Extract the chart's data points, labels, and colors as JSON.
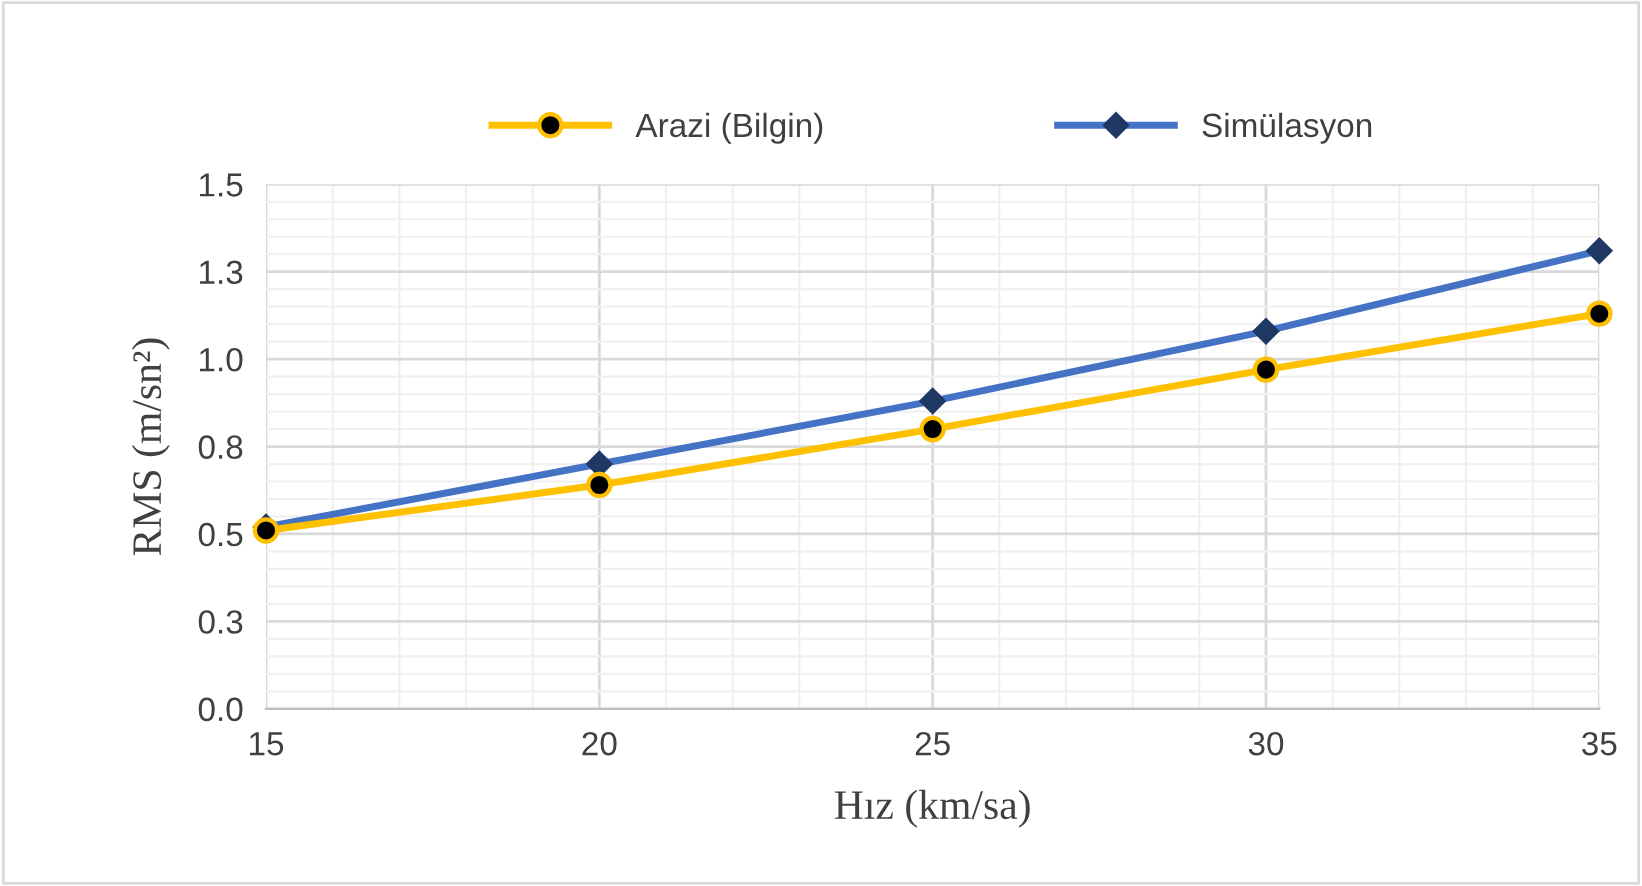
{
  "chart_data": {
    "type": "line",
    "xlabel": "Hız (km/sa)",
    "ylabel": "RMS (m/sn²)",
    "x": [
      15,
      20,
      25,
      30,
      35
    ],
    "series": [
      {
        "name": "Arazi (Bilgin)",
        "color": "#ffc000",
        "values": [
          0.51,
          0.64,
          0.8,
          0.97,
          1.13
        ],
        "marker": "circle"
      },
      {
        "name": "Simülasyon",
        "color": "#4472c4",
        "values": [
          0.52,
          0.7,
          0.88,
          1.08,
          1.31
        ],
        "marker": "diamond"
      }
    ],
    "xlim": [
      15,
      35
    ],
    "xticks": [
      15,
      20,
      25,
      30,
      35
    ],
    "ylim": [
      0,
      1.5
    ],
    "yticks": [
      {
        "value": 0,
        "label": "0.0"
      },
      {
        "value": 0.25,
        "label": "0.3"
      },
      {
        "value": 0.5,
        "label": "0.5"
      },
      {
        "value": 0.75,
        "label": "0.8"
      },
      {
        "value": 1.0,
        "label": "1.0"
      },
      {
        "value": 1.25,
        "label": "1.3"
      },
      {
        "value": 1.5,
        "label": "1.5"
      }
    ],
    "grid": true,
    "legend": "top",
    "line_style": "solid"
  }
}
